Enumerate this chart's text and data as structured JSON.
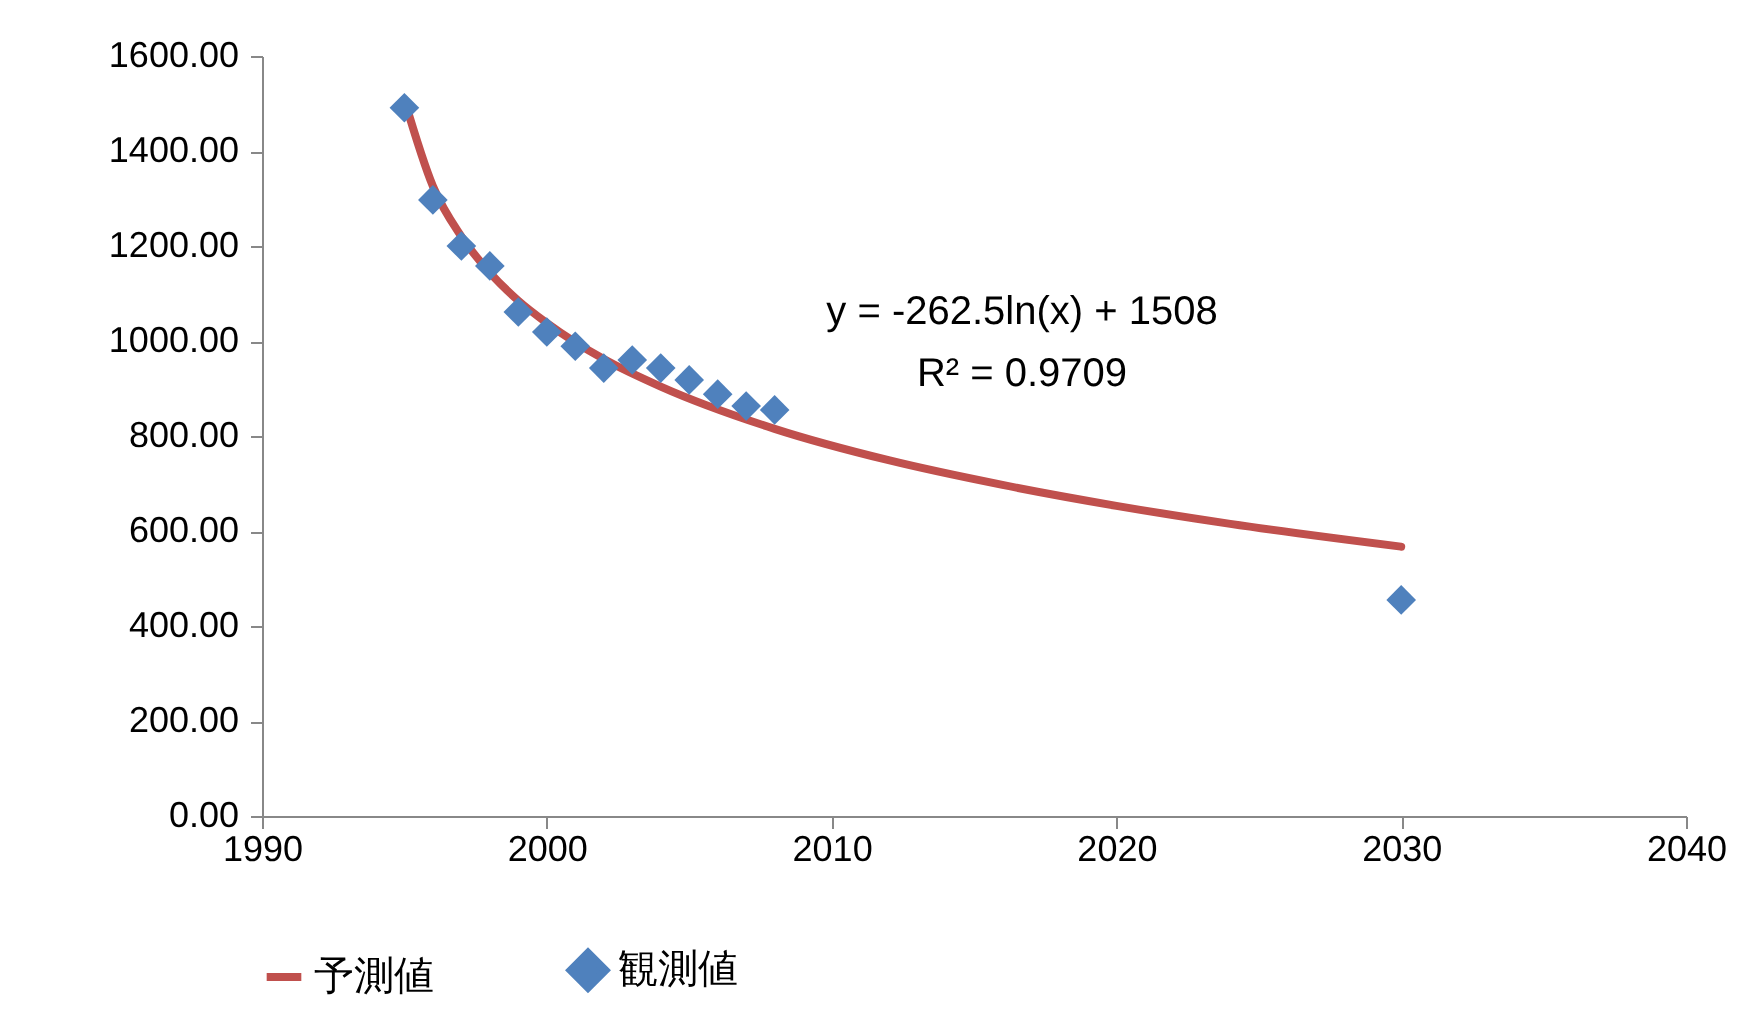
{
  "chart_data": {
    "type": "scatter",
    "xlim": [
      1990,
      2040
    ],
    "xticks": [
      1990,
      2000,
      2010,
      2020,
      2030,
      2040
    ],
    "ylim": [
      0,
      1600
    ],
    "yticks": [
      {
        "value": 0,
        "label": "0.00"
      },
      {
        "value": 200,
        "label": "200.00"
      },
      {
        "value": 400,
        "label": "400.00"
      },
      {
        "value": 600,
        "label": "600.00"
      },
      {
        "value": 800,
        "label": "800.00"
      },
      {
        "value": 1000,
        "label": "1000.00"
      },
      {
        "value": 1200,
        "label": "1200.00"
      },
      {
        "value": 1400,
        "label": "1400.00"
      },
      {
        "value": 1600,
        "label": "1600.00"
      }
    ],
    "grid": false,
    "legend": "bottom",
    "annotations": [
      "y = -262.5ln(x) + 1508",
      "R² = 0.9709"
    ],
    "series": [
      {
        "name": "予測値",
        "type": "line",
        "color": "#c0504d",
        "marker": "none",
        "line_style": "solid",
        "x": [
          1995,
          1996,
          1997,
          1998,
          1999,
          2000,
          2002,
          2004,
          2008,
          2012,
          2016,
          2020,
          2024,
          2030
        ],
        "values": [
          1508,
          1326,
          1220,
          1144,
          1085,
          1038,
          962,
          904,
          815,
          749,
          697,
          653,
          615,
          567
        ]
      },
      {
        "name": "観測値",
        "color": "#4f81bd",
        "marker": "diamond",
        "x": [
          1995,
          1996,
          1997,
          1998,
          1999,
          2000,
          2001,
          2002,
          2003,
          2004,
          2005,
          2006,
          2007,
          2008,
          2030
        ],
        "values": [
          1491,
          1297,
          1200,
          1158,
          1061,
          1019,
          989,
          943,
          960,
          943,
          918,
          888,
          863,
          855,
          455
        ]
      }
    ]
  }
}
